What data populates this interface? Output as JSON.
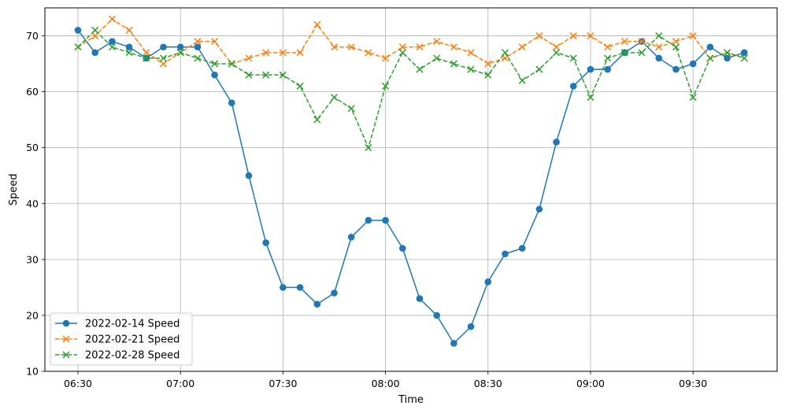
{
  "chart_data": {
    "type": "line",
    "xlabel": "Time",
    "ylabel": "Speed",
    "x": [
      "06:30",
      "06:35",
      "06:40",
      "06:45",
      "06:50",
      "06:55",
      "07:00",
      "07:05",
      "07:10",
      "07:15",
      "07:20",
      "07:25",
      "07:30",
      "07:35",
      "07:40",
      "07:45",
      "07:50",
      "07:55",
      "08:00",
      "08:05",
      "08:10",
      "08:15",
      "08:20",
      "08:25",
      "08:30",
      "08:35",
      "08:40",
      "08:45",
      "08:50",
      "08:55",
      "09:00",
      "09:05",
      "09:10",
      "09:15",
      "09:20",
      "09:25",
      "09:30",
      "09:35",
      "09:40",
      "09:45"
    ],
    "x_ticks": [
      "06:30",
      "07:00",
      "07:30",
      "08:00",
      "08:30",
      "09:00",
      "09:30"
    ],
    "ylim": [
      10,
      75
    ],
    "y_ticks": [
      10,
      20,
      30,
      40,
      50,
      60,
      70
    ],
    "grid": true,
    "legend_position": "lower-left",
    "series": [
      {
        "name": "2022-02-14 Speed",
        "color": "#1f77b4",
        "marker": "circle",
        "linestyle": "solid",
        "values": [
          71,
          67,
          69,
          68,
          66,
          68,
          68,
          68,
          63,
          58,
          45,
          33,
          25,
          25,
          22,
          24,
          34,
          37,
          37,
          32,
          23,
          20,
          15,
          18,
          26,
          31,
          32,
          39,
          51,
          61,
          64,
          64,
          67,
          69,
          66,
          64,
          65,
          68,
          66,
          67
        ]
      },
      {
        "name": "2022-02-21 Speed",
        "color": "#ff7f0e",
        "marker": "x",
        "linestyle": "dashed",
        "values": [
          68,
          70,
          73,
          71,
          67,
          65,
          67,
          69,
          69,
          65,
          66,
          67,
          67,
          67,
          72,
          68,
          68,
          67,
          66,
          68,
          68,
          69,
          68,
          67,
          65,
          66,
          68,
          70,
          68,
          70,
          70,
          68,
          69,
          69,
          68,
          69,
          70,
          66,
          67,
          66
        ]
      },
      {
        "name": "2022-02-28 Speed",
        "color": "#2ca02c",
        "marker": "x",
        "linestyle": "dashed",
        "values": [
          68,
          71,
          68,
          67,
          66,
          66,
          67,
          66,
          65,
          65,
          63,
          63,
          63,
          61,
          55,
          59,
          57,
          50,
          61,
          67,
          64,
          66,
          65,
          64,
          63,
          67,
          62,
          64,
          67,
          66,
          59,
          66,
          67,
          67,
          70,
          68,
          59,
          66,
          67,
          66
        ]
      }
    ]
  }
}
